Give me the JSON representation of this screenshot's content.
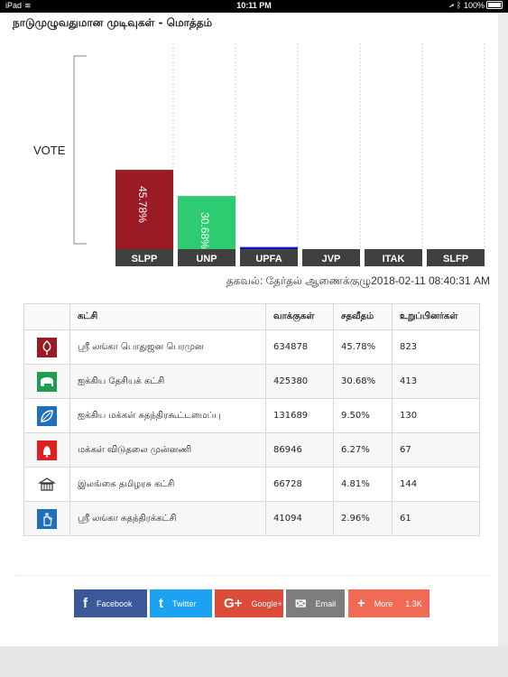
{
  "status_bar": {
    "device": "iPad",
    "time": "10:11 PM",
    "battery": "100%"
  },
  "page_title": "நாடுமுழுவதுமான முடிவுகள் - மொத்தம்",
  "chart_data": {
    "type": "bar",
    "ylabel": "VOTE",
    "categories": [
      "SLPP",
      "UNP",
      "UPFA",
      "JVP",
      "ITAK",
      "SLFP"
    ],
    "values": [
      45.78,
      30.68,
      9.5,
      6.27,
      4.81,
      2.96
    ],
    "visible_values": [
      45.78,
      30.68,
      1.2,
      0,
      0,
      0
    ],
    "data_labels": [
      "45.78%",
      "30.68%",
      "",
      "",
      "",
      ""
    ],
    "colors": [
      "#9b1b24",
      "#2ecc71",
      "#1010c8",
      "#d63030",
      "#cccccc",
      "#1f6fbf"
    ],
    "ylim": [
      0,
      100
    ]
  },
  "source_line": "தகவல்: தேர்தல் ஆணைக்குழு2018-02-11 08:40:31 AM",
  "table": {
    "headers": [
      "",
      "கட்சி",
      "வாக்குகள்",
      "சதவீதம்",
      "உறுப்பினர்கள்"
    ],
    "rows": [
      {
        "logo": "tree-logo",
        "party": "ஸ்ரீ லங்கா பொதுஜன பெரமுன",
        "votes": "634878",
        "percent": "45.78%",
        "members": "823"
      },
      {
        "logo": "elephant-logo",
        "party": "ஐக்கிய தேசியக் கட்சி",
        "votes": "425380",
        "percent": "30.68%",
        "members": "413"
      },
      {
        "logo": "betel-leaf-logo",
        "party": "ஐக்கிய மக்கள் சுதந்திரகூட்டமைப்பு",
        "votes": "131689",
        "percent": "9.50%",
        "members": "130"
      },
      {
        "logo": "bell-logo",
        "party": "மக்கள் விடுதலை முன்னணி",
        "votes": "86946",
        "percent": "6.27%",
        "members": "67"
      },
      {
        "logo": "house-logo",
        "party": "இலங்கை தமிழரசு கட்சி",
        "votes": "66728",
        "percent": "4.81%",
        "members": "144"
      },
      {
        "logo": "hand-logo",
        "party": "ஸ்ரீ லங்கா சுதந்திரக்கட்சி",
        "votes": "41094",
        "percent": "2.96%",
        "members": "61"
      }
    ]
  },
  "share": [
    {
      "name": "facebook",
      "label": "Facebook",
      "icon": "f",
      "color": "#3b5998"
    },
    {
      "name": "twitter",
      "label": "Twitter",
      "icon": "t",
      "color": "#1da1f2"
    },
    {
      "name": "googleplus",
      "label": "Google+",
      "icon": "G+",
      "color": "#dd4b39"
    },
    {
      "name": "email",
      "label": "Email",
      "icon": "✉",
      "color": "#7d7d7d"
    },
    {
      "name": "more",
      "label": "More",
      "icon": "+",
      "color": "#f06a55",
      "count": "1.3K"
    }
  ]
}
